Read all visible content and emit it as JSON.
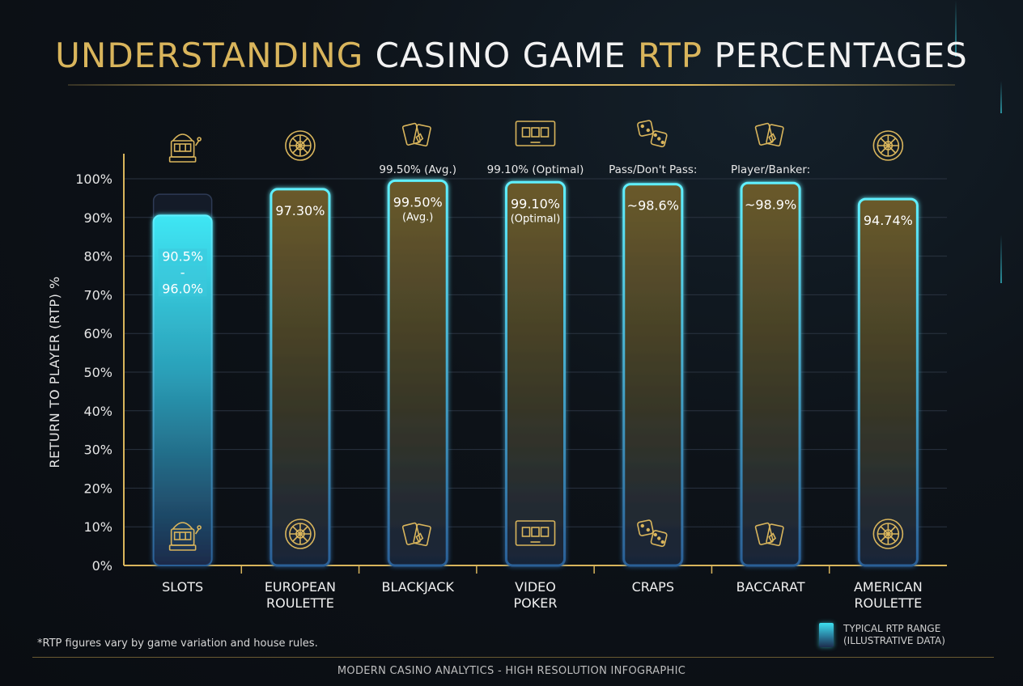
{
  "title": {
    "part1": "UNDERSTANDING",
    "part2": "CASINO GAME",
    "part3": "RTP",
    "part4": "PERCENTAGES"
  },
  "colors": {
    "gold": "#d9b55c",
    "cyan": "#3de0f0",
    "background": "#0d1218"
  },
  "chart_data": {
    "type": "bar",
    "ylabel": "RETURN TO PLAYER (RTP) %",
    "ylim": [
      0,
      100
    ],
    "yticks": [
      "0%",
      "10%",
      "20%",
      "30%",
      "40%",
      "50%",
      "60%",
      "70%",
      "80%",
      "90%",
      "100%"
    ],
    "grid": true,
    "categories": [
      {
        "line1": "SLOTS",
        "line2": ""
      },
      {
        "line1": "EUROPEAN",
        "line2": "ROULETTE"
      },
      {
        "line1": "BLACKJACK",
        "line2": ""
      },
      {
        "line1": "VIDEO",
        "line2": "POKER"
      },
      {
        "line1": "CRAPS",
        "line2": ""
      },
      {
        "line1": "BACCARAT",
        "line2": ""
      },
      {
        "line1": "AMERICAN",
        "line2": "ROULETTE"
      }
    ],
    "bars": [
      {
        "value": 90.5,
        "range_max": 96.0,
        "style": "range",
        "label_lines": [
          "90.5%",
          "-",
          "96.0%"
        ],
        "top_label": "",
        "icon": "slot-machine-icon"
      },
      {
        "value": 97.3,
        "style": "single",
        "label_lines": [
          "97.30%"
        ],
        "top_label": "",
        "icon": "roulette-wheel-icon"
      },
      {
        "value": 99.5,
        "style": "single",
        "label_lines": [
          "99.50%",
          "(Avg.)"
        ],
        "top_label": "99.50% (Avg.)",
        "icon": "playing-cards-icon"
      },
      {
        "value": 99.1,
        "style": "single",
        "label_lines": [
          "99.10%",
          "(Optimal)"
        ],
        "top_label": "99.10% (Optimal)",
        "icon": "video-poker-icon"
      },
      {
        "value": 98.6,
        "style": "single",
        "label_lines": [
          "~98.6%"
        ],
        "top_label": "Pass/Don't Pass:",
        "icon": "dice-icon"
      },
      {
        "value": 98.9,
        "style": "single",
        "label_lines": [
          "~98.9%"
        ],
        "top_label": "Player/Banker:",
        "icon": "playing-cards-icon"
      },
      {
        "value": 94.74,
        "style": "single",
        "label_lines": [
          "94.74%"
        ],
        "top_label": "",
        "icon": "roulette-wheel-icon"
      }
    ]
  },
  "legend": {
    "line1": "TYPICAL RTP RANGE",
    "line2": "(ILLUSTRATIVE DATA)"
  },
  "footnote": "*RTP figures vary by game variation and house rules.",
  "footer": "MODERN CASINO ANALYTICS - HIGH RESOLUTION INFOGRAPHIC"
}
